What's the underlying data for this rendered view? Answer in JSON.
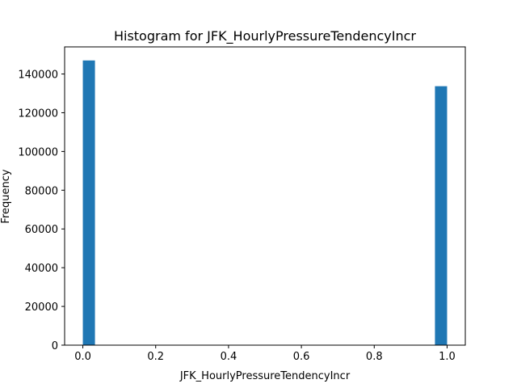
{
  "chart_data": {
    "type": "bar",
    "title": "Histogram for JFK_HourlyPressureTendencyIncr",
    "xlabel": "JFK_HourlyPressureTendencyIncr",
    "ylabel": "Frequency",
    "xlim": [
      -0.05,
      1.05
    ],
    "ylim": [
      0,
      154000
    ],
    "xticks": [
      0.0,
      0.2,
      0.4,
      0.6,
      0.8,
      1.0
    ],
    "xtick_labels": [
      "0.0",
      "0.2",
      "0.4",
      "0.6",
      "0.8",
      "1.0"
    ],
    "yticks": [
      0,
      20000,
      40000,
      60000,
      80000,
      100000,
      120000,
      140000
    ],
    "ytick_labels": [
      "0",
      "20000",
      "40000",
      "60000",
      "80000",
      "100000",
      "120000",
      "140000"
    ],
    "bins": 30,
    "bars": [
      {
        "x0": 0.0,
        "x1": 0.0333,
        "value": 147000
      },
      {
        "x0": 0.9667,
        "x1": 1.0,
        "value": 133700
      }
    ],
    "bar_color": "#1f77b4",
    "grid": false,
    "legend": "none"
  }
}
